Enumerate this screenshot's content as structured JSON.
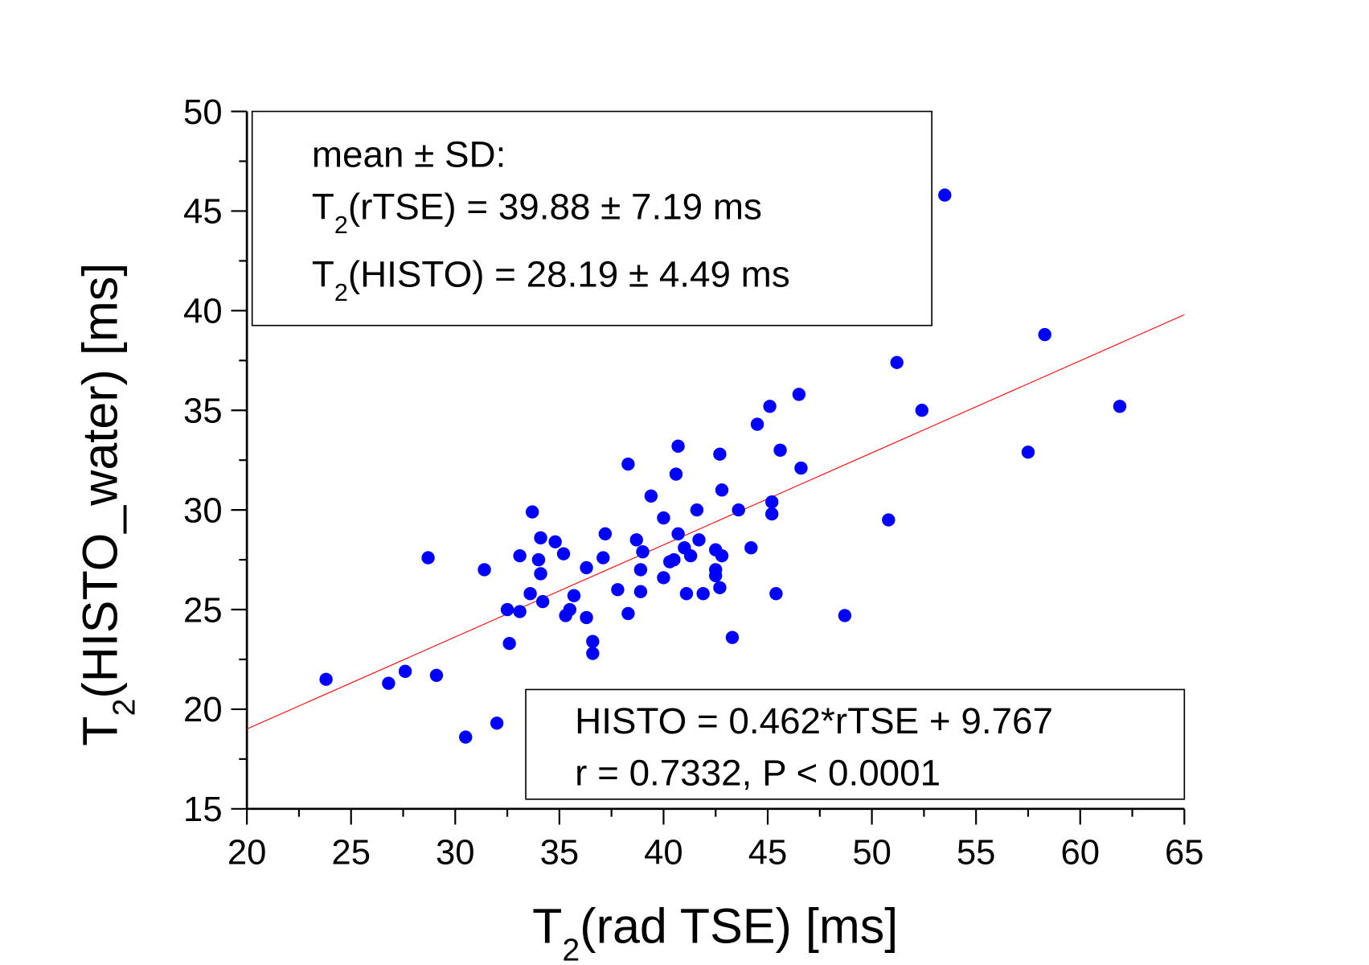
{
  "chart_data": {
    "type": "scatter",
    "xlabel": {
      "main": "T",
      "sub": "2",
      "rest": "(rad TSE) [ms]"
    },
    "ylabel": {
      "main": "T",
      "sub": "2",
      "rest": "(HISTO_water) [ms]"
    },
    "xlim": [
      20,
      65
    ],
    "ylim": [
      15,
      50
    ],
    "xticks": [
      20,
      25,
      30,
      35,
      40,
      45,
      50,
      55,
      60,
      65
    ],
    "yticks": [
      15,
      20,
      25,
      30,
      35,
      40,
      45,
      50
    ],
    "grid": false,
    "point_color": "#0000ff",
    "line_color": "#ff0000",
    "fit": {
      "slope": 0.462,
      "intercept": 9.767,
      "x_range": [
        20,
        65
      ]
    },
    "annotations": {
      "stats_box": {
        "line1": "mean ± SD:",
        "line2": {
          "main": "T",
          "sub": "2",
          "rest": "(rTSE) = 39.88 ± 7.19 ms"
        },
        "line3": {
          "main": "T",
          "sub": "2",
          "rest": "(HISTO) = 28.19 ± 4.49 ms"
        }
      },
      "fit_box": {
        "line1": "HISTO = 0.462*rTSE + 9.767",
        "line2": "r = 0.7332, P < 0.0001"
      }
    },
    "points": [
      [
        23.8,
        21.5
      ],
      [
        26.8,
        21.3
      ],
      [
        27.6,
        21.9
      ],
      [
        28.7,
        27.6
      ],
      [
        29.1,
        21.7
      ],
      [
        30.5,
        18.6
      ],
      [
        31.4,
        27.0
      ],
      [
        32.0,
        19.3
      ],
      [
        32.5,
        25.0
      ],
      [
        32.6,
        23.3
      ],
      [
        33.1,
        27.7
      ],
      [
        33.1,
        24.9
      ],
      [
        33.6,
        25.8
      ],
      [
        33.7,
        29.9
      ],
      [
        34.0,
        27.5
      ],
      [
        34.1,
        26.8
      ],
      [
        34.1,
        28.6
      ],
      [
        34.2,
        25.4
      ],
      [
        34.8,
        28.4
      ],
      [
        35.2,
        27.8
      ],
      [
        35.3,
        24.7
      ],
      [
        35.5,
        25.0
      ],
      [
        35.7,
        25.7
      ],
      [
        36.3,
        27.1
      ],
      [
        36.3,
        24.6
      ],
      [
        36.6,
        23.4
      ],
      [
        36.6,
        22.8
      ],
      [
        37.2,
        28.8
      ],
      [
        37.1,
        27.6
      ],
      [
        37.8,
        26.0
      ],
      [
        38.3,
        32.3
      ],
      [
        38.3,
        24.8
      ],
      [
        38.7,
        28.5
      ],
      [
        38.9,
        27.0
      ],
      [
        38.9,
        25.9
      ],
      [
        39.0,
        27.9
      ],
      [
        39.4,
        30.7
      ],
      [
        40.0,
        29.6
      ],
      [
        40.0,
        26.6
      ],
      [
        40.3,
        27.4
      ],
      [
        40.5,
        27.5
      ],
      [
        40.6,
        31.8
      ],
      [
        40.7,
        33.2
      ],
      [
        40.7,
        28.8
      ],
      [
        41.0,
        28.1
      ],
      [
        41.1,
        25.8
      ],
      [
        41.3,
        27.7
      ],
      [
        41.6,
        30.0
      ],
      [
        41.7,
        28.5
      ],
      [
        41.9,
        25.8
      ],
      [
        42.5,
        28.0
      ],
      [
        42.5,
        27.0
      ],
      [
        42.5,
        26.7
      ],
      [
        42.7,
        32.8
      ],
      [
        42.7,
        26.1
      ],
      [
        42.8,
        27.7
      ],
      [
        42.8,
        31.0
      ],
      [
        43.3,
        23.6
      ],
      [
        43.6,
        30.0
      ],
      [
        44.2,
        28.1
      ],
      [
        44.5,
        34.3
      ],
      [
        45.1,
        35.2
      ],
      [
        45.2,
        30.4
      ],
      [
        45.2,
        29.8
      ],
      [
        45.4,
        25.8
      ],
      [
        45.6,
        33.0
      ],
      [
        46.5,
        35.8
      ],
      [
        46.6,
        32.1
      ],
      [
        48.7,
        24.7
      ],
      [
        50.8,
        29.5
      ],
      [
        51.2,
        37.4
      ],
      [
        52.4,
        35.0
      ],
      [
        53.5,
        45.8
      ],
      [
        57.5,
        32.9
      ],
      [
        58.3,
        38.8
      ],
      [
        61.9,
        35.2
      ]
    ]
  }
}
